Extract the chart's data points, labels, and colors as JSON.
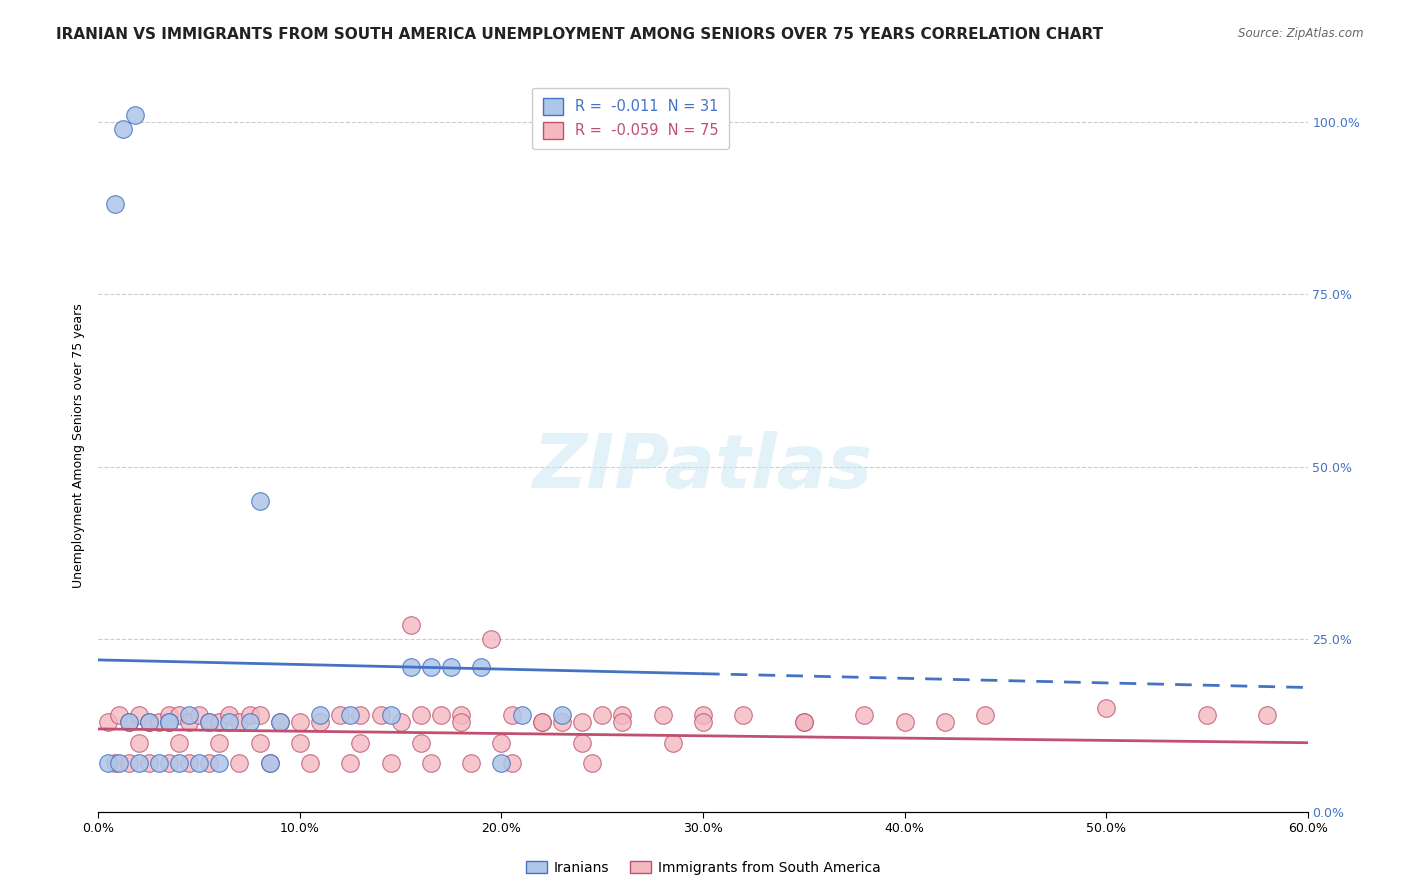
{
  "title": "IRANIAN VS IMMIGRANTS FROM SOUTH AMERICA UNEMPLOYMENT AMONG SENIORS OVER 75 YEARS CORRELATION CHART",
  "source": "Source: ZipAtlas.com",
  "xlabel_vals": [
    0,
    10,
    20,
    30,
    40,
    50,
    60
  ],
  "ylabel_vals": [
    0,
    25,
    50,
    75,
    100
  ],
  "ylabel_label": "Unemployment Among Seniors over 75 years",
  "xlim": [
    0,
    60
  ],
  "ylim": [
    0,
    106
  ],
  "legend_entries": [
    {
      "label": "R =  -0.011  N = 31",
      "color": "#aec6e8",
      "text_color": "#4472c4"
    },
    {
      "label": "R =  -0.059  N = 75",
      "color": "#f4b8c1",
      "text_color": "#c05070"
    }
  ],
  "legend_labels": [
    "Iranians",
    "Immigrants from South America"
  ],
  "iranians_x": [
    1.2,
    1.8,
    0.8,
    2.5,
    3.5,
    4.5,
    5.5,
    6.5,
    7.5,
    9.0,
    11.0,
    12.5,
    14.5,
    15.5,
    16.5,
    17.5,
    19.0,
    21.0,
    23.0,
    0.5,
    1.0,
    2.0,
    3.0,
    4.0,
    5.0,
    6.0,
    8.0,
    1.5,
    3.5,
    20.0,
    8.5
  ],
  "iranians_y": [
    99,
    101,
    88,
    13,
    13,
    14,
    13,
    13,
    13,
    13,
    14,
    14,
    14,
    21,
    21,
    21,
    21,
    14,
    14,
    7,
    7,
    7,
    7,
    7,
    7,
    7,
    45,
    13,
    13,
    7,
    7
  ],
  "south_america_x": [
    0.5,
    1.0,
    1.5,
    2.0,
    2.5,
    3.0,
    3.5,
    4.0,
    4.5,
    5.0,
    5.5,
    6.0,
    6.5,
    7.0,
    7.5,
    8.0,
    9.0,
    10.0,
    11.0,
    12.0,
    13.0,
    14.0,
    15.5,
    16.0,
    17.0,
    18.0,
    19.5,
    20.5,
    22.0,
    23.0,
    24.0,
    25.0,
    26.0,
    28.0,
    30.0,
    32.0,
    35.0,
    38.0,
    40.0,
    44.0,
    50.0,
    55.0,
    58.0,
    0.8,
    1.5,
    2.5,
    3.5,
    4.5,
    5.5,
    7.0,
    8.5,
    10.5,
    12.5,
    14.5,
    16.5,
    18.5,
    20.5,
    24.5,
    2.0,
    4.0,
    6.0,
    8.0,
    10.0,
    13.0,
    16.0,
    20.0,
    24.0,
    28.5,
    15.0,
    18.0,
    22.0,
    26.0,
    30.0,
    35.0,
    42.0
  ],
  "south_america_y": [
    13,
    14,
    13,
    14,
    13,
    13,
    14,
    14,
    13,
    14,
    13,
    13,
    14,
    13,
    14,
    14,
    13,
    13,
    13,
    14,
    14,
    14,
    27,
    14,
    14,
    14,
    25,
    14,
    13,
    13,
    13,
    14,
    14,
    14,
    14,
    14,
    13,
    14,
    13,
    14,
    15,
    14,
    14,
    7,
    7,
    7,
    7,
    7,
    7,
    7,
    7,
    7,
    7,
    7,
    7,
    7,
    7,
    7,
    10,
    10,
    10,
    10,
    10,
    10,
    10,
    10,
    10,
    10,
    13,
    13,
    13,
    13,
    13,
    13,
    13
  ],
  "iranian_color": "#aec6e8",
  "south_america_color": "#f4b8c1",
  "iranian_line_color": "#4472c4",
  "south_america_line_color": "#c05070",
  "background_color": "#ffffff",
  "title_fontsize": 11,
  "marker_size": 160,
  "iran_line_x": [
    0,
    30,
    60
  ],
  "iran_line_y": [
    22,
    20,
    18
  ],
  "iran_line_solid_end": 30,
  "sa_line_x": [
    0,
    60
  ],
  "sa_line_y": [
    12,
    10
  ]
}
